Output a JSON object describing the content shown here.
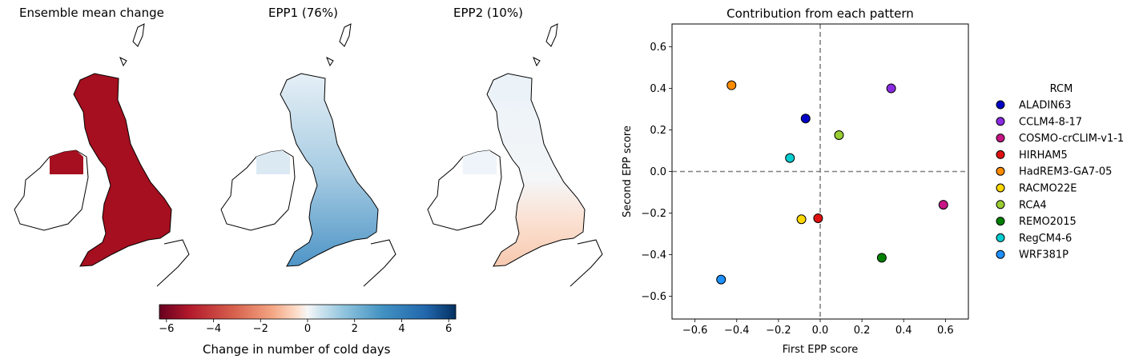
{
  "maps": [
    {
      "title": "Ensemble mean change"
    },
    {
      "title": "EPP1 (76%)"
    },
    {
      "title": "EPP2 (10%)"
    }
  ],
  "colorbar": {
    "label": "Change in number of cold days",
    "ticks": [
      -6,
      -4,
      -2,
      0,
      2,
      4,
      6
    ],
    "tick_labels": [
      "−6",
      "−4",
      "−2",
      "0",
      "2",
      "4",
      "6"
    ],
    "range": [
      -6.3,
      6.3
    ],
    "colormap": "RdBu"
  },
  "chart_data": {
    "type": "scatter",
    "title": "Contribution from each pattern",
    "xlabel": "First EPP score",
    "ylabel": "Second EPP score",
    "xlim": [
      -0.71,
      0.71
    ],
    "ylim": [
      -0.71,
      0.71
    ],
    "xticks": [
      -0.6,
      -0.4,
      -0.2,
      0.0,
      0.2,
      0.4,
      0.6
    ],
    "yticks": [
      -0.6,
      -0.4,
      -0.2,
      0.0,
      0.2,
      0.4,
      0.6
    ],
    "tick_labels": [
      "−0.6",
      "−0.4",
      "−0.2",
      "0.0",
      "0.2",
      "0.4",
      "0.6"
    ],
    "reference_lines": {
      "x": 0,
      "y": 0,
      "style": "dashed",
      "color": "#808080"
    },
    "legend": {
      "title": "RCM",
      "placement": "outside-right"
    },
    "points": [
      {
        "name": "ALADIN63",
        "x": -0.07,
        "y": 0.255,
        "color": "#0000c8"
      },
      {
        "name": "CCLM4-8-17",
        "x": 0.34,
        "y": 0.4,
        "color": "#8a2be2"
      },
      {
        "name": "COSMO-crCLIM-v1-1",
        "x": 0.59,
        "y": -0.16,
        "color": "#c71585"
      },
      {
        "name": "HIRHAM5",
        "x": -0.01,
        "y": -0.225,
        "color": "#e01010"
      },
      {
        "name": "HadREM3-GA7-05",
        "x": -0.425,
        "y": 0.415,
        "color": "#ff8c00"
      },
      {
        "name": "RACMO22E",
        "x": -0.09,
        "y": -0.23,
        "color": "#ffd700"
      },
      {
        "name": "RCA4",
        "x": 0.09,
        "y": 0.175,
        "color": "#9acd32"
      },
      {
        "name": "REMO2015",
        "x": 0.295,
        "y": -0.415,
        "color": "#008000"
      },
      {
        "name": "RegCM4-6",
        "x": -0.145,
        "y": 0.065,
        "color": "#00ced1"
      },
      {
        "name": "WRF381P",
        "x": -0.475,
        "y": -0.52,
        "color": "#1e90ff"
      }
    ]
  }
}
